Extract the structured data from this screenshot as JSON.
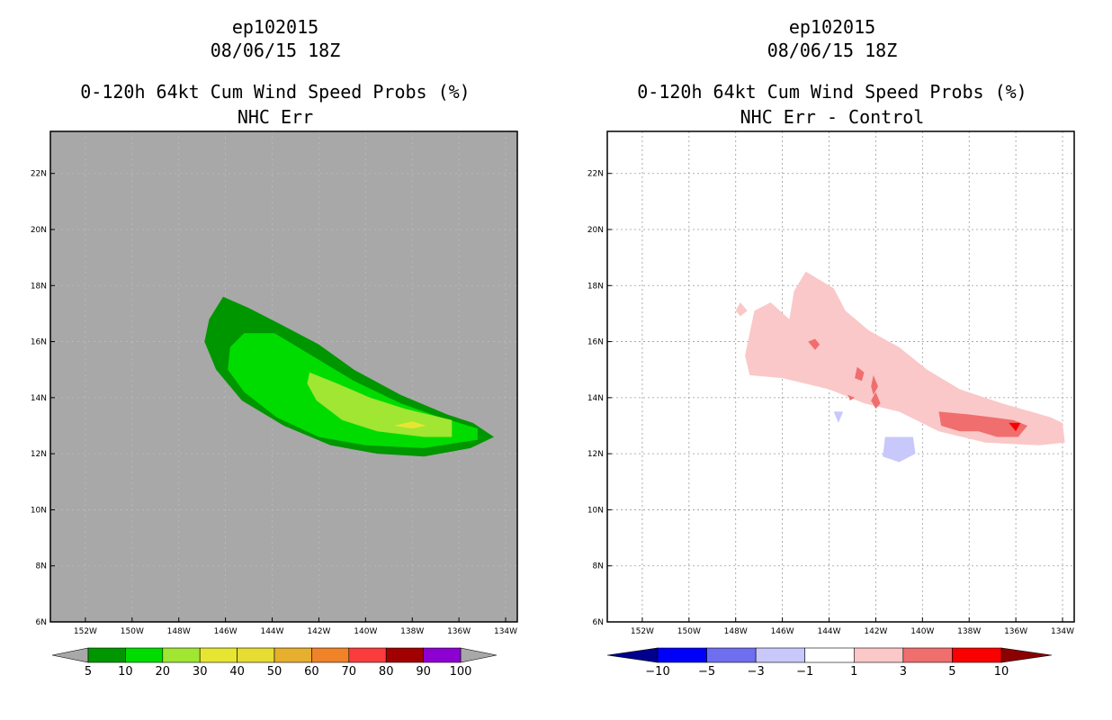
{
  "chart_data": [
    {
      "type": "contour-map",
      "storm": "ep102015",
      "datetime": "08/06/15 18Z",
      "title": "0-120h 64kt Cum Wind Speed Probs (%)",
      "subtitle": "NHC Err",
      "background_color": "#a8a8a8",
      "x_ticks": [
        "152W",
        "150W",
        "148W",
        "146W",
        "144W",
        "142W",
        "140W",
        "138W",
        "136W",
        "134W"
      ],
      "x_tick_values": [
        -152,
        -150,
        -148,
        -146,
        -144,
        -142,
        -140,
        -138,
        -136,
        -134
      ],
      "y_ticks": [
        "6N",
        "8N",
        "10N",
        "12N",
        "14N",
        "16N",
        "18N",
        "20N",
        "22N"
      ],
      "y_tick_values": [
        6,
        8,
        10,
        12,
        14,
        16,
        18,
        20,
        22
      ],
      "xlim": [
        -153.5,
        -133.5
      ],
      "ylim": [
        6,
        23.5
      ],
      "colorbar": {
        "labels": [
          "5",
          "10",
          "20",
          "30",
          "40",
          "50",
          "60",
          "70",
          "80",
          "90",
          "100"
        ],
        "colors": [
          "#009600",
          "#00dc00",
          "#a0e632",
          "#e6e632",
          "#e6dc32",
          "#e6af2d",
          "#f08228",
          "#fa3c3c",
          "#a00000",
          "#8c00d2"
        ],
        "end_colors": [
          "#a8a8a8",
          "#a8a8a8"
        ]
      },
      "contours": [
        {
          "level": 5,
          "color": "#009600",
          "lonlat": [
            [
              -146.7,
              16.8
            ],
            [
              -146.1,
              17.6
            ],
            [
              -145.0,
              17.2
            ],
            [
              -143.6,
              16.6
            ],
            [
              -142.0,
              15.9
            ],
            [
              -140.5,
              15.0
            ],
            [
              -138.5,
              14.1
            ],
            [
              -136.5,
              13.4
            ],
            [
              -135.4,
              13.1
            ],
            [
              -134.5,
              12.6
            ],
            [
              -135.5,
              12.2
            ],
            [
              -137.5,
              11.9
            ],
            [
              -139.5,
              12.0
            ],
            [
              -141.5,
              12.3
            ],
            [
              -143.5,
              13.0
            ],
            [
              -145.3,
              13.9
            ],
            [
              -146.4,
              15.0
            ],
            [
              -146.9,
              16.0
            ]
          ]
        },
        {
          "level": 10,
          "color": "#00dc00",
          "lonlat": [
            [
              -145.8,
              15.8
            ],
            [
              -145.2,
              16.3
            ],
            [
              -143.9,
              16.3
            ],
            [
              -142.3,
              15.5
            ],
            [
              -140.5,
              14.6
            ],
            [
              -138.5,
              13.8
            ],
            [
              -136.8,
              13.3
            ],
            [
              -135.2,
              12.9
            ],
            [
              -135.2,
              12.5
            ],
            [
              -137.5,
              12.2
            ],
            [
              -140.0,
              12.3
            ],
            [
              -142.0,
              12.6
            ],
            [
              -143.8,
              13.3
            ],
            [
              -145.2,
              14.2
            ],
            [
              -145.9,
              15.0
            ]
          ]
        },
        {
          "level": 20,
          "color": "#a0e632",
          "lonlat": [
            [
              -142.4,
              14.9
            ],
            [
              -141.2,
              14.5
            ],
            [
              -139.8,
              14.0
            ],
            [
              -138.3,
              13.6
            ],
            [
              -136.3,
              13.2
            ],
            [
              -136.3,
              12.6
            ],
            [
              -137.5,
              12.6
            ],
            [
              -139.5,
              12.8
            ],
            [
              -141.0,
              13.2
            ],
            [
              -142.1,
              13.9
            ],
            [
              -142.5,
              14.5
            ]
          ]
        },
        {
          "level": 30,
          "color": "#e6e632",
          "lonlat": [
            [
              -138.8,
              13.0
            ],
            [
              -138.0,
              13.15
            ],
            [
              -137.4,
              13.0
            ],
            [
              -138.0,
              12.9
            ]
          ]
        }
      ]
    },
    {
      "type": "contour-map",
      "storm": "ep102015",
      "datetime": "08/06/15 18Z",
      "title": "0-120h 64kt Cum Wind Speed Probs (%)",
      "subtitle": "NHC Err - Control",
      "background_color": "#ffffff",
      "x_ticks": [
        "152W",
        "150W",
        "148W",
        "146W",
        "144W",
        "142W",
        "140W",
        "138W",
        "136W",
        "134W"
      ],
      "x_tick_values": [
        -152,
        -150,
        -148,
        -146,
        -144,
        -142,
        -140,
        -138,
        -136,
        -134
      ],
      "y_ticks": [
        "6N",
        "8N",
        "10N",
        "12N",
        "14N",
        "16N",
        "18N",
        "20N",
        "22N"
      ],
      "y_tick_values": [
        6,
        8,
        10,
        12,
        14,
        16,
        18,
        20,
        22
      ],
      "xlim": [
        -153.5,
        -133.5
      ],
      "ylim": [
        6,
        23.5
      ],
      "grid": true,
      "colorbar": {
        "labels": [
          "-10",
          "-5",
          "-3",
          "-1",
          "1",
          "3",
          "5",
          "10"
        ],
        "colors": [
          "#0000fa",
          "#6e6ef0",
          "#c8c8fa",
          "#ffffff",
          "#fac8c8",
          "#f06e6e",
          "#fa0000"
        ],
        "end_colors": [
          "#00008c",
          "#8c0000"
        ]
      },
      "contours": [
        {
          "level": 1,
          "color": "#fac8c8",
          "lonlat": [
            [
              -147.6,
              15.5
            ],
            [
              -147.2,
              17.1
            ],
            [
              -146.5,
              17.4
            ],
            [
              -145.7,
              16.8
            ],
            [
              -145.5,
              17.8
            ],
            [
              -145.0,
              18.5
            ],
            [
              -143.8,
              17.9
            ],
            [
              -143.3,
              17.1
            ],
            [
              -142.3,
              16.4
            ],
            [
              -141.0,
              15.8
            ],
            [
              -139.8,
              15.0
            ],
            [
              -138.4,
              14.3
            ],
            [
              -136.6,
              13.8
            ],
            [
              -134.5,
              13.3
            ],
            [
              -134.0,
              13.1
            ],
            [
              -133.9,
              12.4
            ],
            [
              -135.0,
              12.3
            ],
            [
              -137.3,
              12.4
            ],
            [
              -139.3,
              12.8
            ],
            [
              -141.0,
              13.5
            ],
            [
              -142.5,
              13.8
            ],
            [
              -144.0,
              14.3
            ],
            [
              -146.0,
              14.7
            ],
            [
              -147.4,
              14.8
            ]
          ]
        },
        {
          "level": 1,
          "color": "#fac8c8",
          "lonlat": [
            [
              -147.8,
              17.4
            ],
            [
              -147.5,
              17.1
            ],
            [
              -147.8,
              16.9
            ],
            [
              -148.0,
              17.1
            ]
          ]
        },
        {
          "level": -1,
          "color": "#c8c8fa",
          "lonlat": [
            [
              -141.6,
              12.6
            ],
            [
              -140.4,
              12.6
            ],
            [
              -140.3,
              12.0
            ],
            [
              -141.0,
              11.7
            ],
            [
              -141.7,
              11.9
            ]
          ]
        },
        {
          "level": -1,
          "color": "#c8c8fa",
          "lonlat": [
            [
              -143.8,
              13.5
            ],
            [
              -143.4,
              13.5
            ],
            [
              -143.6,
              13.1
            ]
          ]
        },
        {
          "level": 3,
          "color": "#f06e6e",
          "lonlat": [
            [
              -139.3,
              13.5
            ],
            [
              -138.0,
              13.4
            ],
            [
              -137.0,
              13.3
            ],
            [
              -136.1,
              13.2
            ],
            [
              -135.5,
              13.0
            ],
            [
              -135.9,
              12.6
            ],
            [
              -136.8,
              12.6
            ],
            [
              -137.6,
              12.8
            ],
            [
              -138.4,
              12.8
            ],
            [
              -139.2,
              13.0
            ]
          ]
        },
        {
          "level": 3,
          "color": "#f06e6e",
          "lonlat": [
            [
              -144.9,
              16.0
            ],
            [
              -144.6,
              16.1
            ],
            [
              -144.4,
              15.9
            ],
            [
              -144.6,
              15.7
            ]
          ]
        },
        {
          "level": 3,
          "color": "#f06e6e",
          "lonlat": [
            [
              -142.8,
              15.1
            ],
            [
              -142.5,
              14.9
            ],
            [
              -142.6,
              14.6
            ],
            [
              -142.9,
              14.7
            ]
          ]
        },
        {
          "level": 3,
          "color": "#f06e6e",
          "lonlat": [
            [
              -142.1,
              14.8
            ],
            [
              -141.9,
              14.4
            ],
            [
              -142.1,
              14.1
            ],
            [
              -142.2,
              14.4
            ]
          ]
        },
        {
          "level": 3,
          "color": "#f06e6e",
          "lonlat": [
            [
              -142.0,
              14.2
            ],
            [
              -141.8,
              13.8
            ],
            [
              -142.0,
              13.6
            ],
            [
              -142.2,
              13.9
            ]
          ]
        },
        {
          "level": 3,
          "color": "#f06e6e",
          "lonlat": [
            [
              -143.2,
              14.1
            ],
            [
              -142.9,
              14.0
            ],
            [
              -143.1,
              13.9
            ]
          ]
        },
        {
          "level": 5,
          "color": "#fa0000",
          "lonlat": [
            [
              -136.3,
              13.1
            ],
            [
              -135.8,
              13.1
            ],
            [
              -136.0,
              12.8
            ]
          ]
        }
      ]
    }
  ]
}
